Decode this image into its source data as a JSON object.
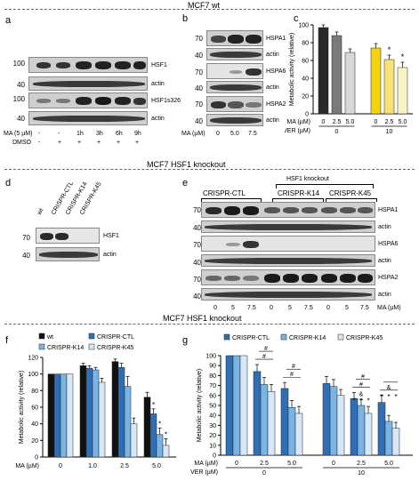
{
  "sections": {
    "top": "MCF7 wt",
    "middle": "MCF7   HSF1 knockout",
    "bottom": "MCF7 HSF1 knockout"
  },
  "panel_a": {
    "letter": "a",
    "blots": [
      "HSF1",
      "actin",
      "HSF1s326",
      "actin"
    ],
    "mw": [
      "100",
      "40",
      "100",
      "40"
    ],
    "row_ma": {
      "label": "MA (5 µM)",
      "values": [
        "-",
        "-",
        "1h",
        "3h",
        "6h",
        "9h"
      ]
    },
    "row_dmso": {
      "label": "DMSO",
      "values": [
        "-",
        "+",
        "+",
        "+",
        "+",
        "+"
      ]
    }
  },
  "panel_b": {
    "letter": "b",
    "blots": [
      "HSPA1",
      "actin",
      "HSPA6",
      "actin",
      "HSPA2",
      "actin"
    ],
    "mw": [
      "70",
      "40",
      "70",
      "40",
      "70",
      "40"
    ],
    "row_ma": {
      "label": "MA (µM)",
      "values": [
        "0",
        "5.0",
        "7.5"
      ]
    }
  },
  "panel_d": {
    "letter": "d",
    "lanes": [
      "wt",
      "CRISPR-CTL",
      "CRISPR-K14",
      "CRISPR-K45"
    ],
    "blots": [
      "HSF1",
      "actin"
    ],
    "mw": [
      "70",
      "40"
    ]
  },
  "panel_e": {
    "letter": "e",
    "group_top": "HSF1 knockout",
    "groups": [
      "CRISPR-CTL",
      "CRISPR-K14",
      "CRISPR-K45"
    ],
    "blots": [
      "HSPA1",
      "actin",
      "HSPA6",
      "actin",
      "HSPA2",
      "actin"
    ],
    "mw": [
      "70",
      "40",
      "70",
      "40",
      "70",
      "40"
    ],
    "ma_values": [
      "0",
      "5",
      "7.5",
      "0",
      "5",
      "7.5",
      "0",
      "5",
      "7.5"
    ],
    "ma_label": "MA (µM)"
  },
  "chart_data": [
    {
      "panel": "c",
      "type": "bar",
      "ylabel": "Metabolic activity (relative)",
      "ylim": [
        0,
        100
      ],
      "yticks": [
        "0",
        "20",
        "40",
        "60",
        "80",
        "100"
      ],
      "row_labels": [
        "MA (µM)",
        "VER (µM)"
      ],
      "ma": [
        "0",
        "2.5",
        "5.0",
        "0",
        "2.5",
        "5.0"
      ],
      "ver_groups": [
        "0",
        "10"
      ],
      "values": [
        97,
        88,
        69,
        74,
        61,
        52
      ],
      "errors": [
        3,
        4,
        4,
        5,
        5,
        6
      ],
      "colors": [
        "#2b2b2b",
        "#7a7a7a",
        "#d8d8d8",
        "#f5d20a",
        "#f7e27a",
        "#fbf2c4"
      ],
      "stars": [
        "",
        "",
        "",
        "",
        "*",
        "*"
      ]
    },
    {
      "panel": "f",
      "type": "bar",
      "ylabel": "Metabolic activity (relative)",
      "ylim": [
        0,
        120
      ],
      "yticks": [
        "0",
        "20",
        "40",
        "60",
        "80",
        "100",
        "120"
      ],
      "xlabel": "MA (µM)",
      "categories": [
        "0",
        "1.0",
        "2.5",
        "5.0"
      ],
      "series": [
        {
          "name": "wt",
          "color": "#111111",
          "values": [
            100,
            110,
            115,
            72
          ],
          "errors": [
            0,
            3,
            3,
            6
          ]
        },
        {
          "name": "CRISPR-CTL",
          "color": "#2f6fb5",
          "values": [
            100,
            107,
            108,
            52
          ],
          "errors": [
            0,
            3,
            5,
            6
          ]
        },
        {
          "name": "CRISPR-K14",
          "color": "#79b4e3",
          "values": [
            100,
            105,
            85,
            27
          ],
          "errors": [
            0,
            3,
            12,
            8
          ]
        },
        {
          "name": "CRISPR-K45",
          "color": "#d6e8f7",
          "values": [
            100,
            90,
            40,
            14
          ],
          "errors": [
            0,
            5,
            7,
            8
          ]
        }
      ],
      "stars": [
        [
          "",
          "",
          "",
          ""
        ],
        [
          "",
          "",
          "",
          "*"
        ],
        [
          "",
          "",
          "",
          "*"
        ],
        [
          "",
          "",
          "",
          "*"
        ]
      ]
    },
    {
      "panel": "g",
      "type": "bar",
      "ylabel": "Metabolic activity (relative)",
      "ylim": [
        0,
        100
      ],
      "yticks": [
        "0",
        "10",
        "20",
        "30",
        "40",
        "50",
        "60",
        "70",
        "80",
        "90",
        "100"
      ],
      "row_labels": [
        "MA (µM)",
        "VER (µM)"
      ],
      "ma": [
        "0",
        "2.5",
        "5.0",
        "0",
        "2.5",
        "5.0"
      ],
      "ver_groups": [
        "0",
        "10"
      ],
      "series": [
        {
          "name": "CRISPR-CTL",
          "color": "#2f6fb5",
          "values": [
            100,
            84,
            67,
            72,
            57,
            53
          ],
          "errors": [
            0,
            7,
            6,
            7,
            6,
            7
          ]
        },
        {
          "name": "CRISPR-K14",
          "color": "#79b4e3",
          "values": [
            100,
            71,
            48,
            69,
            50,
            34
          ],
          "errors": [
            0,
            7,
            7,
            7,
            6,
            6
          ]
        },
        {
          "name": "CRISPR-K45",
          "color": "#d6e8f7",
          "values": [
            100,
            64,
            42,
            60,
            42,
            27
          ],
          "errors": [
            0,
            7,
            7,
            6,
            7,
            6
          ]
        }
      ],
      "sig_marks": [
        "#",
        "#",
        "#",
        "#",
        "#",
        "#",
        "&"
      ],
      "stars": [
        "*",
        "*",
        "*",
        "*",
        "*",
        "*"
      ]
    }
  ]
}
